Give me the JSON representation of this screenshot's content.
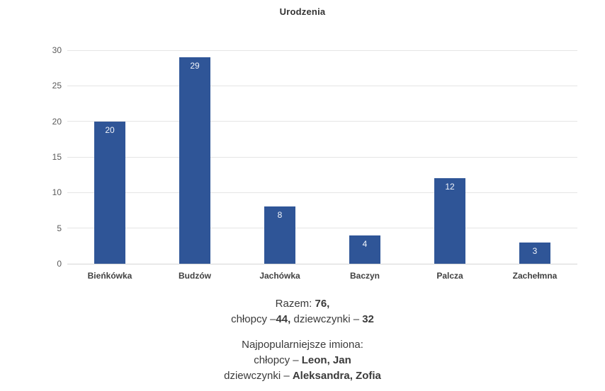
{
  "chart_data": {
    "type": "bar",
    "title": "Urodzenia",
    "categories": [
      "Bieńkówka",
      "Budzów",
      "Jachówka",
      "Baczyn",
      "Palcza",
      "Zachełmna"
    ],
    "values": [
      20,
      29,
      8,
      4,
      12,
      3
    ],
    "xlabel": "",
    "ylabel": "",
    "ylim": [
      0,
      30
    ],
    "yticks": [
      0,
      5,
      10,
      15,
      20,
      25,
      30
    ],
    "grid": true,
    "legend": "none",
    "bar_color": "#2f5597",
    "value_label_color": "#f2f5fb",
    "value_labels_shown": true
  },
  "summary": {
    "razem_label": "Razem: ",
    "razem_value": "76,",
    "boys_label": "chłopcy –",
    "boys_value": "44,",
    "girls_label": " dziewczynki – ",
    "girls_value": "32"
  },
  "names": {
    "title": "Najpopularniejsze imiona:",
    "boys_label": "chłopcy – ",
    "boys_value": "Leon, Jan",
    "girls_label": "dziewczynki – ",
    "girls_value": "Aleksandra, Zofia"
  }
}
